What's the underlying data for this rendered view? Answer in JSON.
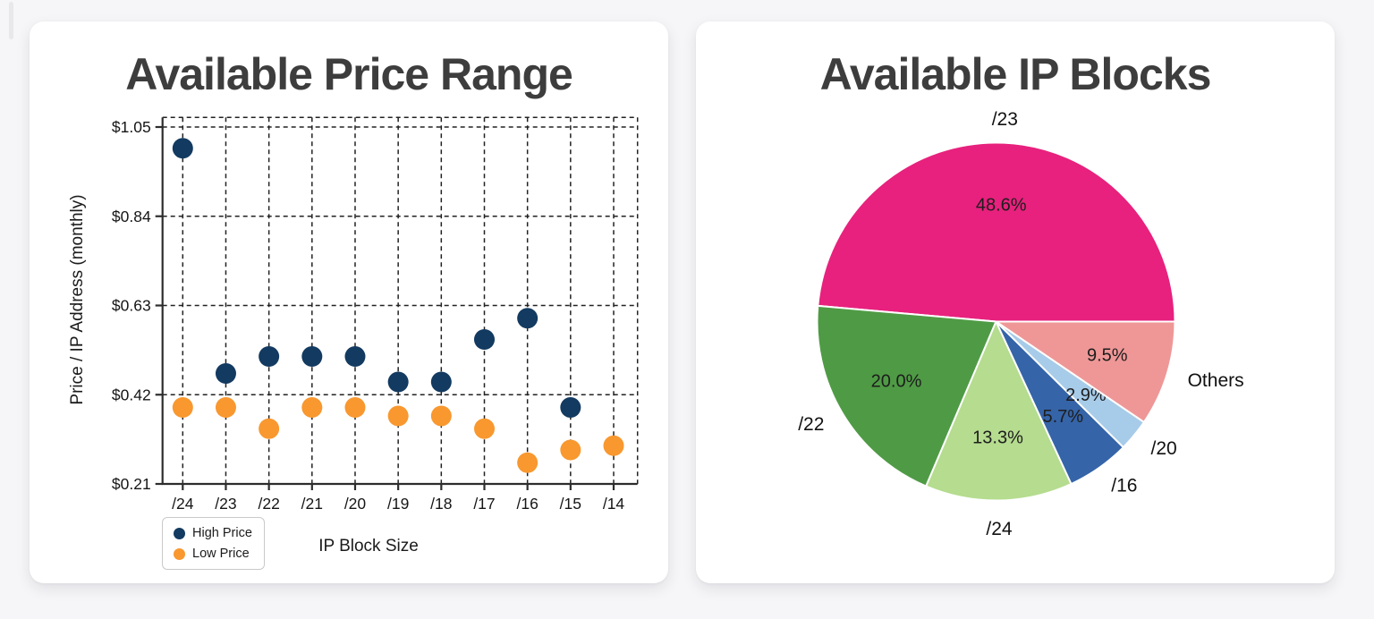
{
  "page": {
    "background": "#f6f6f8"
  },
  "chart_data": [
    {
      "type": "scatter",
      "title": "Available Price Range",
      "xlabel": "IP Block Size",
      "ylabel": "Price / IP Address (monthly)",
      "categories": [
        "/24",
        "/23",
        "/22",
        "/21",
        "/20",
        "/19",
        "/18",
        "/17",
        "/16",
        "/15",
        "/14"
      ],
      "series": [
        {
          "name": "High Price",
          "color": "#133a60",
          "values": [
            1.0,
            0.47,
            0.51,
            0.51,
            0.51,
            0.45,
            0.45,
            0.55,
            0.6,
            0.39,
            null
          ]
        },
        {
          "name": "Low Price",
          "color": "#f8982f",
          "values": [
            0.39,
            0.39,
            0.34,
            0.39,
            0.39,
            0.37,
            0.37,
            0.34,
            0.26,
            0.29,
            0.3
          ]
        }
      ],
      "y_ticks": [
        {
          "label": "$1.05",
          "value": 1.05
        },
        {
          "label": "$0.84",
          "value": 0.84
        },
        {
          "label": "$0.63",
          "value": 0.63
        },
        {
          "label": "$0.42",
          "value": 0.42
        },
        {
          "label": "$0.21",
          "value": 0.21
        }
      ],
      "ylim": [
        0.21,
        1.073
      ],
      "grid": "dashed",
      "legend_position": "bottom-left"
    },
    {
      "type": "pie",
      "title": "Available IP Blocks",
      "start_angle": 0,
      "counterclock": true,
      "slices": [
        {
          "label": "/23",
          "pct": 48.6,
          "pct_label": "48.6%",
          "color": "#e7217d"
        },
        {
          "label": "/22",
          "pct": 20.0,
          "pct_label": "20.0%",
          "color": "#4f9b45"
        },
        {
          "label": "/24",
          "pct": 13.3,
          "pct_label": "13.3%",
          "color": "#b5dc8f"
        },
        {
          "label": "/16",
          "pct": 5.7,
          "pct_label": "5.7%",
          "color": "#3564a8"
        },
        {
          "label": "/20",
          "pct": 2.9,
          "pct_label": "2.9%",
          "color": "#a7cce9"
        },
        {
          "label": "Others",
          "pct": 9.5,
          "pct_label": "9.5%",
          "color": "#ef9797"
        }
      ]
    }
  ]
}
